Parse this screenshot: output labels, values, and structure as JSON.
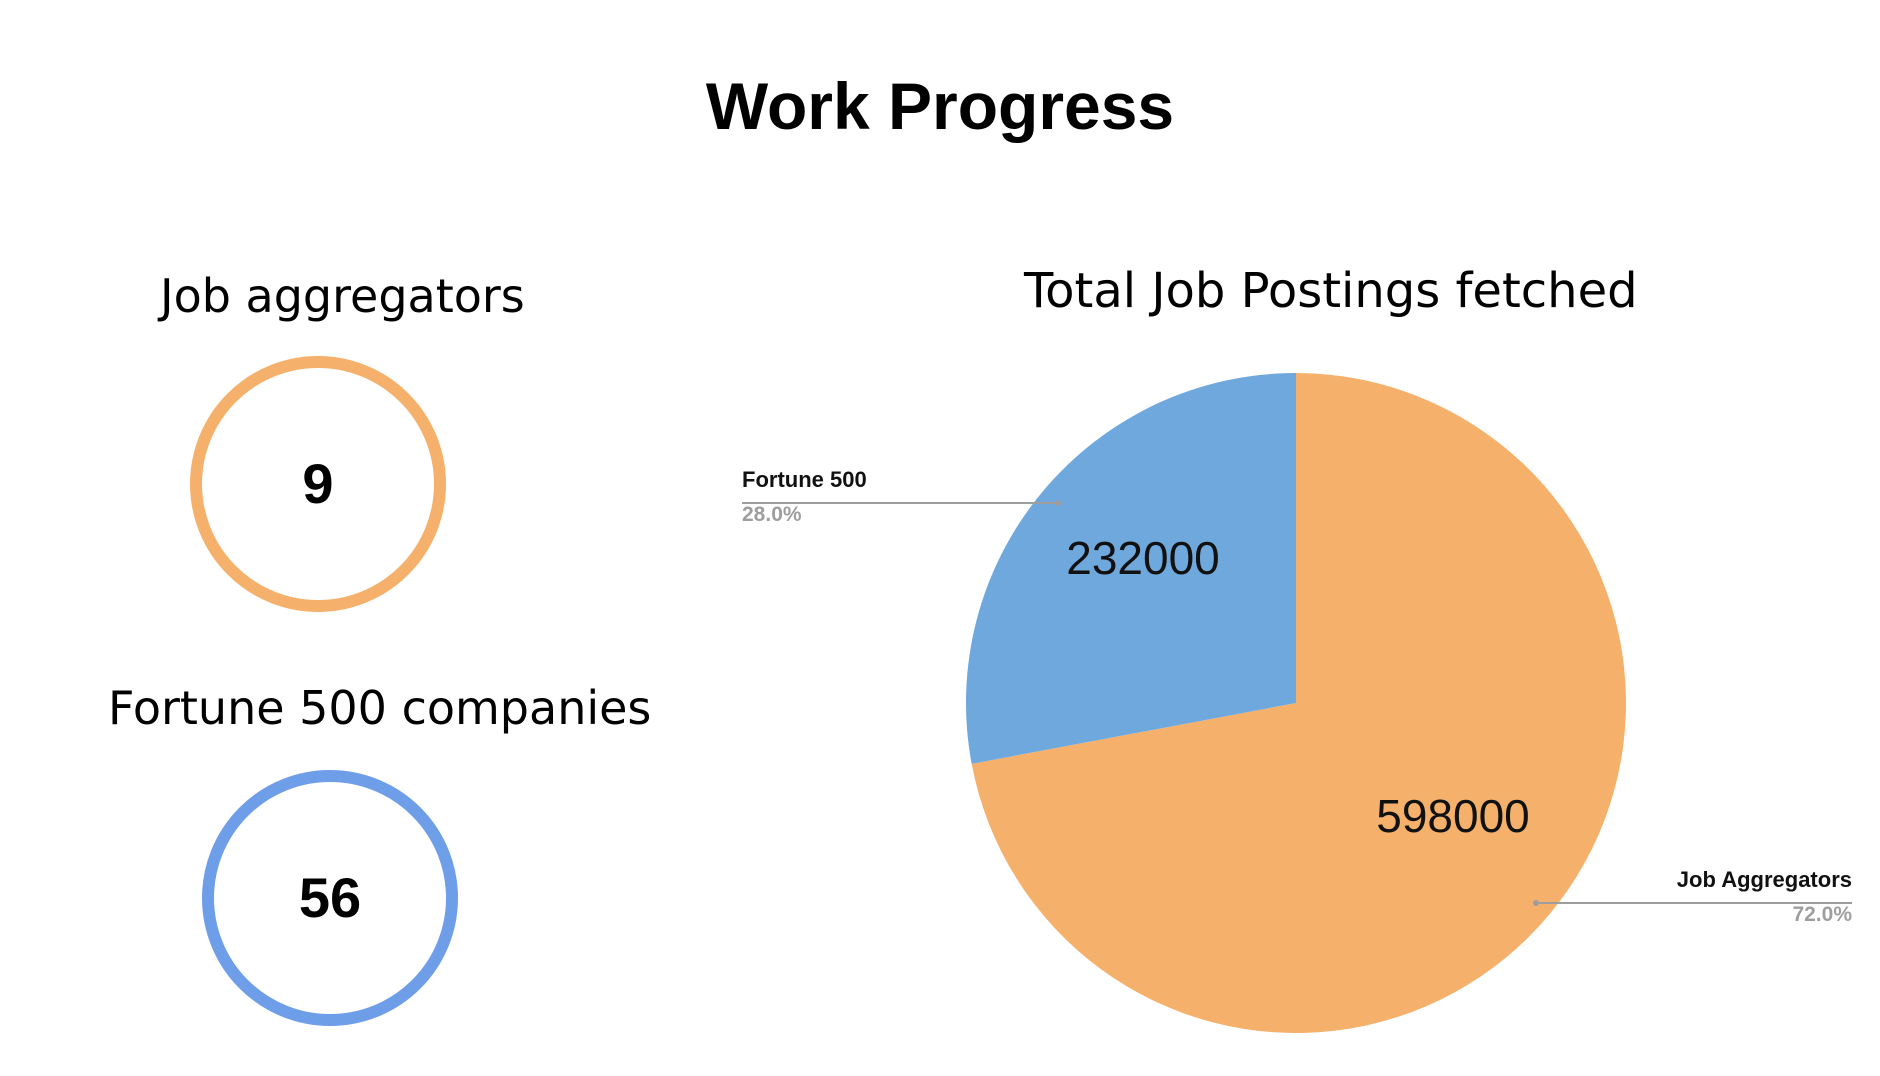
{
  "title": "Work Progress",
  "stats": [
    {
      "label": "Job aggregators",
      "value": "9",
      "color": "#f5b16b"
    },
    {
      "label": "Fortune 500 companies",
      "value": "56",
      "color": "#6f9ee8"
    }
  ],
  "chart_data": {
    "type": "pie",
    "title": "Total Job Postings fetched",
    "slices": [
      {
        "label": "Job Aggregators",
        "value": 598000,
        "percent": "72.0%",
        "color": "#f5b16b"
      },
      {
        "label": "Fortune 500",
        "value": 232000,
        "percent": "28.0%",
        "color": "#6fa8dc"
      }
    ],
    "legend": "external labels"
  }
}
